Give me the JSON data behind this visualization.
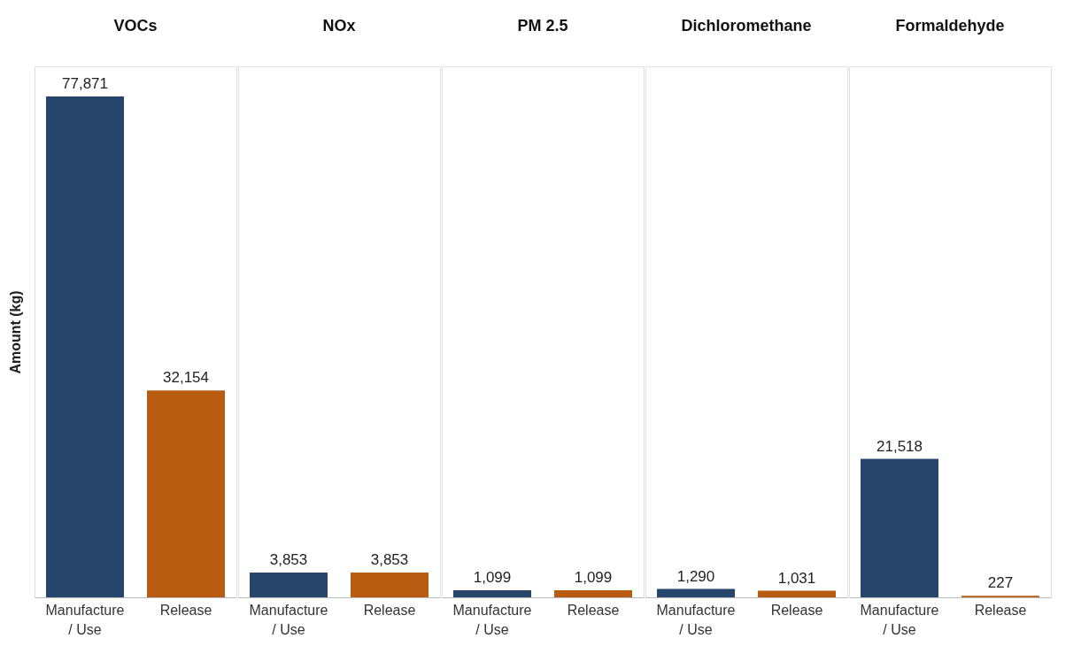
{
  "chart_data": [
    {
      "type": "bar",
      "title": "VOCs",
      "ylabel": "Amount (kg)",
      "categories": [
        "Manufacture / Use",
        "Release"
      ],
      "values": [
        77871,
        32154
      ],
      "value_labels": [
        "77,871",
        "32,154"
      ],
      "colors": [
        "#27446b",
        "#b85c12"
      ],
      "tick_labels": "x"
    },
    {
      "type": "bar",
      "title": "NOx",
      "categories": [
        "Manufacture / Use",
        "Release"
      ],
      "values": [
        3853,
        3853
      ],
      "value_labels": [
        "3,853",
        "3,853"
      ],
      "colors": [
        "#27446b",
        "#b85c12"
      ],
      "tick_labels": "x"
    },
    {
      "type": "bar",
      "title": "PM 2.5",
      "categories": [
        "Manufacture / Use",
        "Release"
      ],
      "values": [
        1099,
        1099
      ],
      "value_labels": [
        "1,099",
        "1,099"
      ],
      "colors": [
        "#27446b",
        "#b85c12"
      ],
      "tick_labels": "x"
    },
    {
      "type": "bar",
      "title": "Dichloromethane",
      "categories": [
        "Manufacture / Use",
        "Release"
      ],
      "values": [
        1290,
        1031
      ],
      "value_labels": [
        "1,290",
        "1,031"
      ],
      "colors": [
        "#27446b",
        "#b85c12"
      ],
      "tick_labels": "x"
    },
    {
      "type": "bar",
      "title": "Formaldehyde",
      "categories": [
        "Manufacture / Use",
        "Release"
      ],
      "values": [
        21518,
        227
      ],
      "value_labels": [
        "21,518",
        "227"
      ],
      "colors": [
        "#27446b",
        "#b85c12"
      ],
      "tick_labels": "x"
    }
  ]
}
